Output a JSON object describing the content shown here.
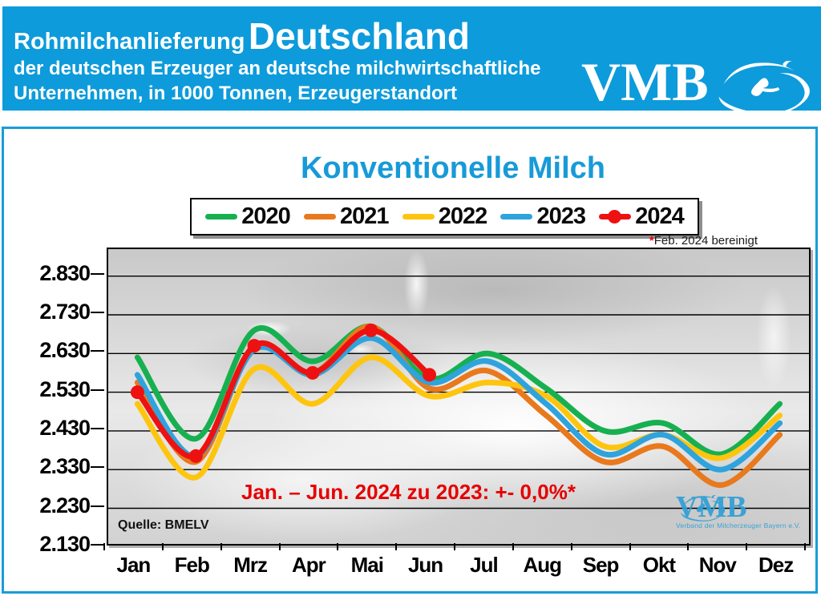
{
  "header": {
    "title_small": "Rohmilchanlieferung",
    "title_large": "Deutschland",
    "subtitle_line1": "der deutschen Erzeuger an deutsche milchwirtschaftliche",
    "subtitle_line2": "Unternehmen, in 1000 Tonnen, Erzeugerstandort",
    "logo_text": "VMB",
    "bg_color": "#0d9bdb"
  },
  "chart_panel": {
    "title": "Konventionelle Milch",
    "title_color": "#189ad8",
    "legend_note_star": "*",
    "legend_note": "Feb. 2024 bereinigt",
    "annotation": "Jan. – Jun. 2024 zu 2023: +- 0,0%*",
    "annotation_color": "#e60000",
    "source": "Quelle: BMELV",
    "watermark_text": "VMB",
    "watermark_sub": "Verband der Milcherzeuger Bayern e.V.",
    "border_color": "#1a9cd8"
  },
  "chart_data": {
    "type": "line",
    "title": "Konventionelle Milch",
    "unit": "1000 Tonnen",
    "categories": [
      "Jan",
      "Feb",
      "Mrz",
      "Apr",
      "Mai",
      "Jun",
      "Jul",
      "Aug",
      "Sep",
      "Okt",
      "Nov",
      "Dez"
    ],
    "series": [
      {
        "name": "2020",
        "color": "#17b050",
        "marker": false,
        "values": [
          2620,
          2410,
          2690,
          2610,
          2700,
          2565,
          2630,
          2540,
          2430,
          2450,
          2370,
          2500
        ]
      },
      {
        "name": "2021",
        "color": "#e8791d",
        "marker": false,
        "values": [
          2555,
          2350,
          2645,
          2580,
          2700,
          2540,
          2585,
          2470,
          2350,
          2390,
          2290,
          2420
        ]
      },
      {
        "name": "2022",
        "color": "#fec50f",
        "marker": false,
        "values": [
          2500,
          2310,
          2590,
          2500,
          2620,
          2520,
          2555,
          2520,
          2390,
          2420,
          2360,
          2470
        ]
      },
      {
        "name": "2023",
        "color": "#2fa3dc",
        "marker": false,
        "values": [
          2575,
          2365,
          2640,
          2575,
          2670,
          2555,
          2610,
          2500,
          2370,
          2420,
          2330,
          2450
        ]
      },
      {
        "name": "2024",
        "color": "#ee1111",
        "marker": true,
        "values": [
          2530,
          2365,
          2650,
          2580,
          2690,
          2575
        ]
      }
    ],
    "ylim": [
      2130,
      2830
    ],
    "ytick_labels": [
      "2.830",
      "2.730",
      "2.630",
      "2.530",
      "2.430",
      "2.330",
      "2.230",
      "2.130"
    ],
    "ytick_values": [
      2830,
      2730,
      2630,
      2530,
      2430,
      2330,
      2230,
      2130
    ],
    "grid": true,
    "legend_position": "top"
  }
}
